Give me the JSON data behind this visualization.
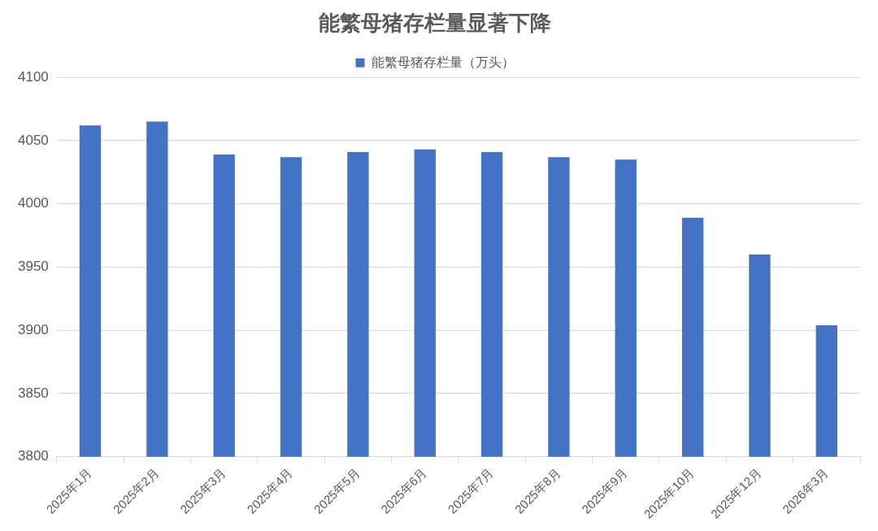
{
  "chart_data": {
    "type": "bar",
    "title": "能繁母猪存栏量显著下降",
    "categories": [
      "2025年1月",
      "2025年2月",
      "2025年3月",
      "2025年4月",
      "2025年5月",
      "2025年6月",
      "2025年7月",
      "2025年8月",
      "2025年9月",
      "2025年10月",
      "2025年12月",
      "2026年3月"
    ],
    "series": [
      {
        "name": "能繁母猪存栏量（万头）",
        "color": "#4472c4",
        "values": [
          4062,
          4065,
          4039,
          4037,
          4041,
          4043,
          4041,
          4037,
          4035,
          3989,
          3960,
          3904
        ]
      }
    ],
    "ylim": [
      3800,
      4100
    ],
    "yticks": [
      3800,
      3850,
      3900,
      3950,
      4000,
      4050,
      4100
    ],
    "grid": "y",
    "legend": "top"
  }
}
